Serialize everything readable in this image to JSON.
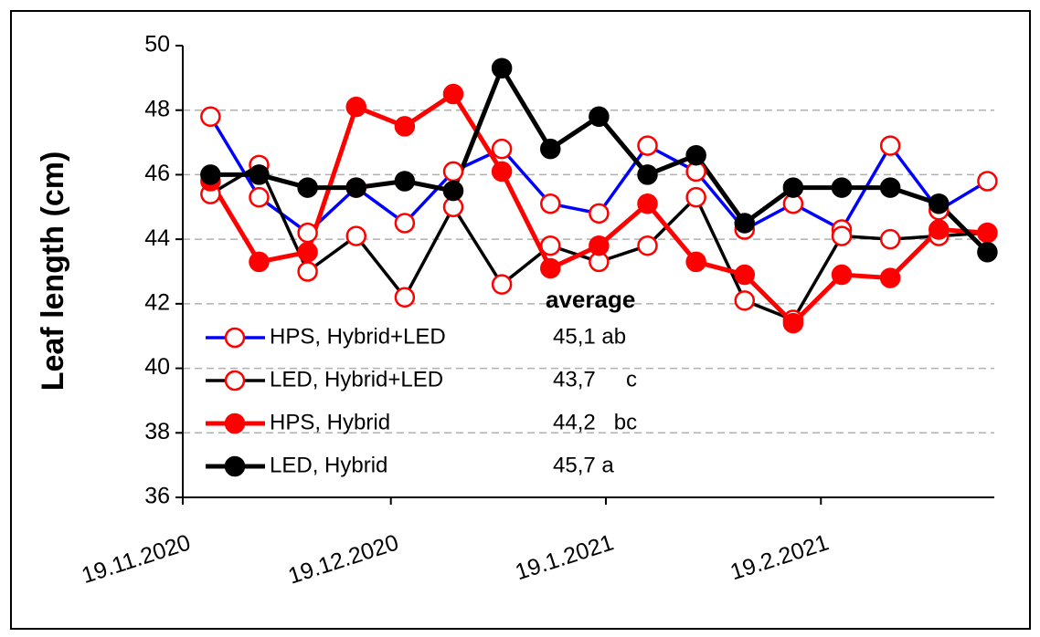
{
  "chart_data": {
    "type": "line",
    "y_label": "Leaf length (cm)",
    "legend_title": "average",
    "x": [
      "2020-11-23",
      "2020-11-30",
      "2020-12-07",
      "2020-12-14",
      "2020-12-21",
      "2020-12-28",
      "2021-01-04",
      "2021-01-11",
      "2021-01-18",
      "2021-01-25",
      "2021-02-01",
      "2021-02-08",
      "2021-02-15",
      "2021-02-22",
      "2021-03-01",
      "2021-03-08",
      "2021-03-15"
    ],
    "xlim": [
      "2020-11-19",
      "2021-03-16"
    ],
    "xticks": [
      {
        "value": "2020-11-19",
        "label": "19.11.2020"
      },
      {
        "value": "2020-12-19",
        "label": "19.12.2020"
      },
      {
        "value": "2021-01-19",
        "label": "19.1.2021"
      },
      {
        "value": "2021-02-19",
        "label": "19.2.2021"
      }
    ],
    "ylim": [
      36,
      50
    ],
    "yticks": [
      36,
      38,
      40,
      42,
      44,
      46,
      48,
      50
    ],
    "grid": true,
    "series": [
      {
        "name": "HPS, Hybrid+LED",
        "average": "45,1 ab",
        "color": "#0000ff",
        "marker_color": "#ff0000",
        "filled": false,
        "values": [
          47.8,
          45.3,
          44.2,
          45.6,
          44.5,
          46.1,
          46.8,
          45.1,
          44.8,
          46.9,
          46.1,
          44.3,
          45.1,
          44.3,
          46.9,
          44.9,
          45.8
        ]
      },
      {
        "name": "LED, Hybrid+LED",
        "average": "43,7     c",
        "color": "#000000",
        "marker_color": "#ff0000",
        "filled": false,
        "values": [
          45.4,
          46.3,
          43.0,
          44.1,
          42.2,
          45.0,
          42.6,
          43.8,
          43.3,
          43.8,
          45.3,
          42.1,
          41.5,
          44.1,
          44.0,
          44.1,
          44.2
        ]
      },
      {
        "name": "HPS, Hybrid",
        "average": "44,2   bc",
        "color": "#ff0000",
        "marker_color": "#ff0000",
        "filled": true,
        "values": [
          45.8,
          43.3,
          43.6,
          48.1,
          47.5,
          48.5,
          46.1,
          43.1,
          43.8,
          45.1,
          43.3,
          42.9,
          41.4,
          42.9,
          42.8,
          44.3,
          44.2
        ]
      },
      {
        "name": "LED, Hybrid",
        "average": "45,7 a",
        "color": "#000000",
        "marker_color": "#000000",
        "filled": true,
        "values": [
          46.0,
          46.0,
          45.6,
          45.6,
          45.8,
          45.5,
          49.3,
          46.8,
          47.8,
          46.0,
          46.6,
          44.5,
          45.6,
          45.6,
          45.6,
          45.1,
          43.6
        ]
      }
    ]
  }
}
